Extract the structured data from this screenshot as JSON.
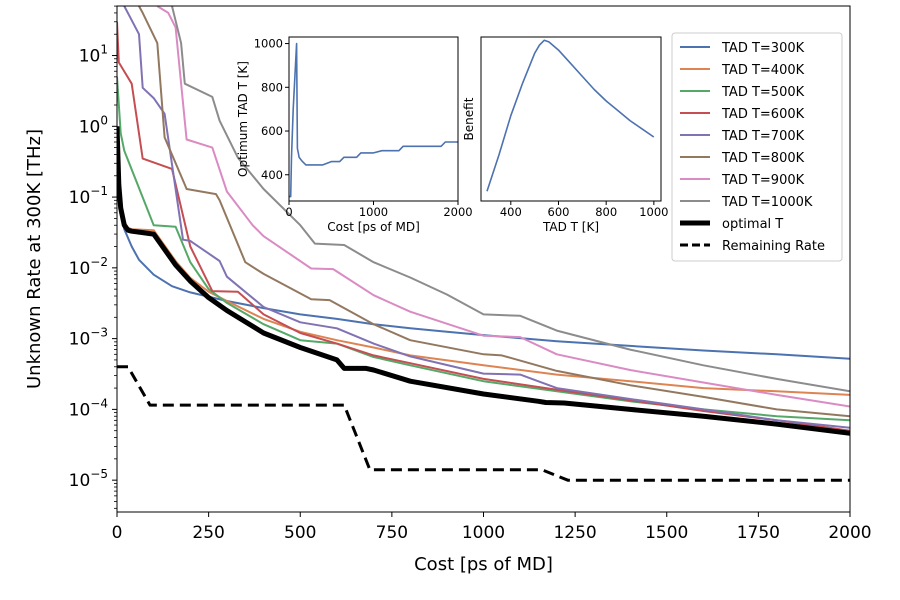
{
  "chart_data": [
    {
      "type": "line",
      "xlabel": "Cost [ps of MD]",
      "ylabel": "Unknown Rate at 300K [THz]",
      "yscale": "log",
      "xlim": [
        0,
        2000
      ],
      "ylim_log10": [
        -5.45,
        1.7
      ],
      "x_ticks": [
        {
          "v": 0,
          "label": "0"
        },
        {
          "v": 250,
          "label": "250"
        },
        {
          "v": 500,
          "label": "500"
        },
        {
          "v": 750,
          "label": "750"
        },
        {
          "v": 1000,
          "label": "1000"
        },
        {
          "v": 1250,
          "label": "1250"
        },
        {
          "v": 1500,
          "label": "1500"
        },
        {
          "v": 1750,
          "label": "1750"
        },
        {
          "v": 2000,
          "label": "2000"
        }
      ],
      "y_ticks": [
        {
          "e": 1,
          "base": "10",
          "exp": "1"
        },
        {
          "e": 0,
          "base": "10",
          "exp": "0"
        },
        {
          "e": -1,
          "base": "10",
          "exp": "−1"
        },
        {
          "e": -2,
          "base": "10",
          "exp": "−2"
        },
        {
          "e": -3,
          "base": "10",
          "exp": "−3"
        },
        {
          "e": -4,
          "base": "10",
          "exp": "−4"
        },
        {
          "e": -5,
          "base": "10",
          "exp": "−5"
        }
      ],
      "series": [
        {
          "name": "TAD T=300K",
          "color": "#4c72b0",
          "width": 2,
          "dash": "",
          "x": [
            0,
            5,
            10,
            20,
            40,
            60,
            100,
            150,
            200,
            300,
            400,
            500,
            600,
            700,
            800,
            900,
            1000,
            1200,
            1400,
            1600,
            1800,
            2000
          ],
          "y": [
            0.3,
            0.1,
            0.06,
            0.035,
            0.02,
            0.013,
            0.008,
            0.0055,
            0.0045,
            0.0034,
            0.0027,
            0.0022,
            0.0019,
            0.0016,
            0.0014,
            0.00125,
            0.00112,
            0.00092,
            0.00079,
            0.00068,
            0.0006,
            0.00052
          ]
        },
        {
          "name": "TAD T=400K",
          "color": "#dd8452",
          "width": 2,
          "dash": "",
          "x": [
            0,
            10,
            20,
            30,
            40,
            100,
            160,
            200,
            250,
            300,
            400,
            500,
            600,
            700,
            800,
            1000,
            1200,
            1400,
            1600,
            1800,
            2000
          ],
          "y": [
            1.0,
            0.08,
            0.045,
            0.037,
            0.035,
            0.034,
            0.0125,
            0.0072,
            0.0046,
            0.0034,
            0.0019,
            0.00125,
            0.00095,
            0.00075,
            0.00058,
            0.00042,
            0.00031,
            0.00025,
            0.0002,
            0.00018,
            0.00016
          ]
        },
        {
          "name": "TAD T=500K",
          "color": "#55a868",
          "width": 2,
          "dash": "",
          "x": [
            0,
            10,
            20,
            100,
            160,
            200,
            250,
            300,
            400,
            500,
            600,
            700,
            800,
            1000,
            1200,
            1400,
            1600,
            1800,
            2000
          ],
          "y": [
            5.0,
            0.8,
            0.45,
            0.04,
            0.038,
            0.012,
            0.005,
            0.0032,
            0.0016,
            0.00095,
            0.00085,
            0.00055,
            0.00042,
            0.00025,
            0.00018,
            0.00013,
            0.0001,
            8e-05,
            7e-05
          ]
        },
        {
          "name": "TAD T=600K",
          "color": "#c44e52",
          "width": 2,
          "dash": "",
          "x": [
            0,
            5,
            40,
            70,
            150,
            200,
            260,
            330,
            400,
            500,
            600,
            700,
            800,
            1000,
            1200,
            1400,
            1600,
            1800,
            2000
          ],
          "y": [
            30,
            8,
            4.0,
            0.35,
            0.25,
            0.02,
            0.0047,
            0.0046,
            0.0022,
            0.0012,
            0.00085,
            0.00058,
            0.00045,
            0.00027,
            0.00019,
            0.000135,
            9.5e-05,
            7e-05,
            5e-05
          ]
        },
        {
          "name": "TAD T=700K",
          "color": "#8172b3",
          "width": 2,
          "dash": "",
          "x": [
            20,
            60,
            70,
            100,
            130,
            180,
            200,
            280,
            300,
            400,
            500,
            600,
            700,
            800,
            1000,
            1100,
            1200,
            1400,
            1600,
            1800,
            2000
          ],
          "y": [
            50,
            20,
            3.5,
            2.5,
            1.5,
            0.025,
            0.024,
            0.0125,
            0.0075,
            0.0028,
            0.0017,
            0.0014,
            0.00085,
            0.00056,
            0.00032,
            0.00031,
            0.0002,
            0.00014,
            0.0001,
            7e-05,
            5.5e-05
          ]
        },
        {
          "name": "TAD T=800K",
          "color": "#937860",
          "width": 2,
          "dash": "",
          "x": [
            60,
            70,
            110,
            130,
            185,
            190,
            270,
            280,
            350,
            400,
            530,
            580,
            700,
            800,
            1000,
            1050,
            1200,
            1400,
            1600,
            1800,
            2000
          ],
          "y": [
            50,
            40,
            15,
            0.7,
            0.15,
            0.13,
            0.11,
            0.09,
            0.012,
            0.0082,
            0.0036,
            0.0035,
            0.0016,
            0.00095,
            0.0006,
            0.00058,
            0.00035,
            0.00022,
            0.00015,
            0.0001,
            8e-05
          ]
        },
        {
          "name": "TAD T=900K",
          "color": "#da8bc3",
          "width": 2,
          "dash": "",
          "x": [
            110,
            140,
            160,
            190,
            260,
            300,
            370,
            400,
            530,
            590,
            700,
            800,
            1000,
            1100,
            1200,
            1400,
            1600,
            1800,
            2000
          ],
          "y": [
            50,
            40,
            25,
            0.65,
            0.5,
            0.12,
            0.04,
            0.028,
            0.0098,
            0.0096,
            0.0041,
            0.0024,
            0.0011,
            0.00105,
            0.0006,
            0.00036,
            0.00024,
            0.00016,
            0.00011
          ]
        },
        {
          "name": "TAD T=1000K",
          "color": "#8c8c8c",
          "width": 2,
          "dash": "",
          "x": [
            150,
            175,
            185,
            260,
            280,
            330,
            400,
            500,
            540,
            620,
            700,
            800,
            900,
            1000,
            1100,
            1200,
            1400,
            1600,
            1800,
            2000
          ],
          "y": [
            50,
            15,
            4.0,
            2.6,
            1.2,
            0.36,
            0.13,
            0.04,
            0.022,
            0.021,
            0.012,
            0.0073,
            0.0042,
            0.0022,
            0.0021,
            0.0013,
            0.0007,
            0.00042,
            0.00027,
            0.00018
          ]
        },
        {
          "name": "optimal T",
          "color": "#000000",
          "width": 5,
          "dash": "",
          "x": [
            0,
            5,
            10,
            20,
            30,
            40,
            60,
            100,
            160,
            200,
            250,
            300,
            400,
            500,
            600,
            620,
            680,
            700,
            800,
            1000,
            1150,
            1170,
            1220,
            1400,
            1600,
            1800,
            2000
          ],
          "y": [
            1.0,
            0.15,
            0.07,
            0.04,
            0.034,
            0.033,
            0.032,
            0.03,
            0.011,
            0.0065,
            0.0038,
            0.0025,
            0.0012,
            0.00075,
            0.0005,
            0.00038,
            0.00038,
            0.00036,
            0.00025,
            0.000165,
            0.00013,
            0.000125,
            0.000123,
            0.0001,
            8e-05,
            6.2e-05,
            4.6e-05
          ]
        },
        {
          "name": "Remaining Rate",
          "color": "#000000",
          "width": 3,
          "dash": "11,6",
          "x": [
            0,
            30,
            90,
            100,
            620,
            690,
            700,
            1160,
            1230,
            1250,
            2000
          ],
          "y": [
            0.0004,
            0.0004,
            0.000115,
            0.000115,
            0.000115,
            1.4e-05,
            1.4e-05,
            1.4e-05,
            1e-05,
            1e-05,
            1e-05
          ]
        }
      ]
    },
    {
      "type": "line",
      "name": "inset-optimum",
      "xlabel": "Cost [ps of MD]",
      "ylabel": "Optimum TAD T [K]",
      "xlim": [
        0,
        2000
      ],
      "ylim": [
        280,
        1030
      ],
      "x_ticks": [
        {
          "v": 0,
          "label": "0"
        },
        {
          "v": 1000,
          "label": "1000"
        },
        {
          "v": 2000,
          "label": "2000"
        }
      ],
      "y_ticks": [
        {
          "v": 400,
          "label": "400"
        },
        {
          "v": 600,
          "label": "600"
        },
        {
          "v": 800,
          "label": "800"
        },
        {
          "v": 1000,
          "label": "1000"
        }
      ],
      "color": "#4c72b0",
      "x": [
        0,
        20,
        30,
        50,
        70,
        90,
        100,
        110,
        120,
        140,
        160,
        200,
        250,
        300,
        400,
        500,
        600,
        650,
        800,
        850,
        1000,
        1100,
        1300,
        1350,
        1800,
        1850,
        2000
      ],
      "y": [
        300,
        300,
        480,
        700,
        850,
        1000,
        520,
        500,
        480,
        470,
        460,
        445,
        445,
        445,
        445,
        460,
        460,
        480,
        480,
        500,
        500,
        510,
        510,
        530,
        530,
        550,
        550
      ]
    },
    {
      "type": "line",
      "name": "inset-benefit",
      "xlabel": "TAD T [K]",
      "ylabel": "Benefit",
      "xlim": [
        275,
        1030
      ],
      "ylim": [
        0,
        1
      ],
      "x_ticks": [
        {
          "v": 400,
          "label": "400"
        },
        {
          "v": 600,
          "label": "600"
        },
        {
          "v": 800,
          "label": "800"
        },
        {
          "v": 1000,
          "label": "1000"
        }
      ],
      "color": "#4c72b0",
      "x": [
        300,
        350,
        400,
        450,
        500,
        520,
        540,
        560,
        600,
        650,
        700,
        750,
        800,
        850,
        900,
        950,
        1000
      ],
      "y": [
        0.06,
        0.28,
        0.52,
        0.72,
        0.9,
        0.95,
        0.98,
        0.97,
        0.92,
        0.84,
        0.76,
        0.68,
        0.61,
        0.55,
        0.49,
        0.44,
        0.39
      ]
    }
  ]
}
